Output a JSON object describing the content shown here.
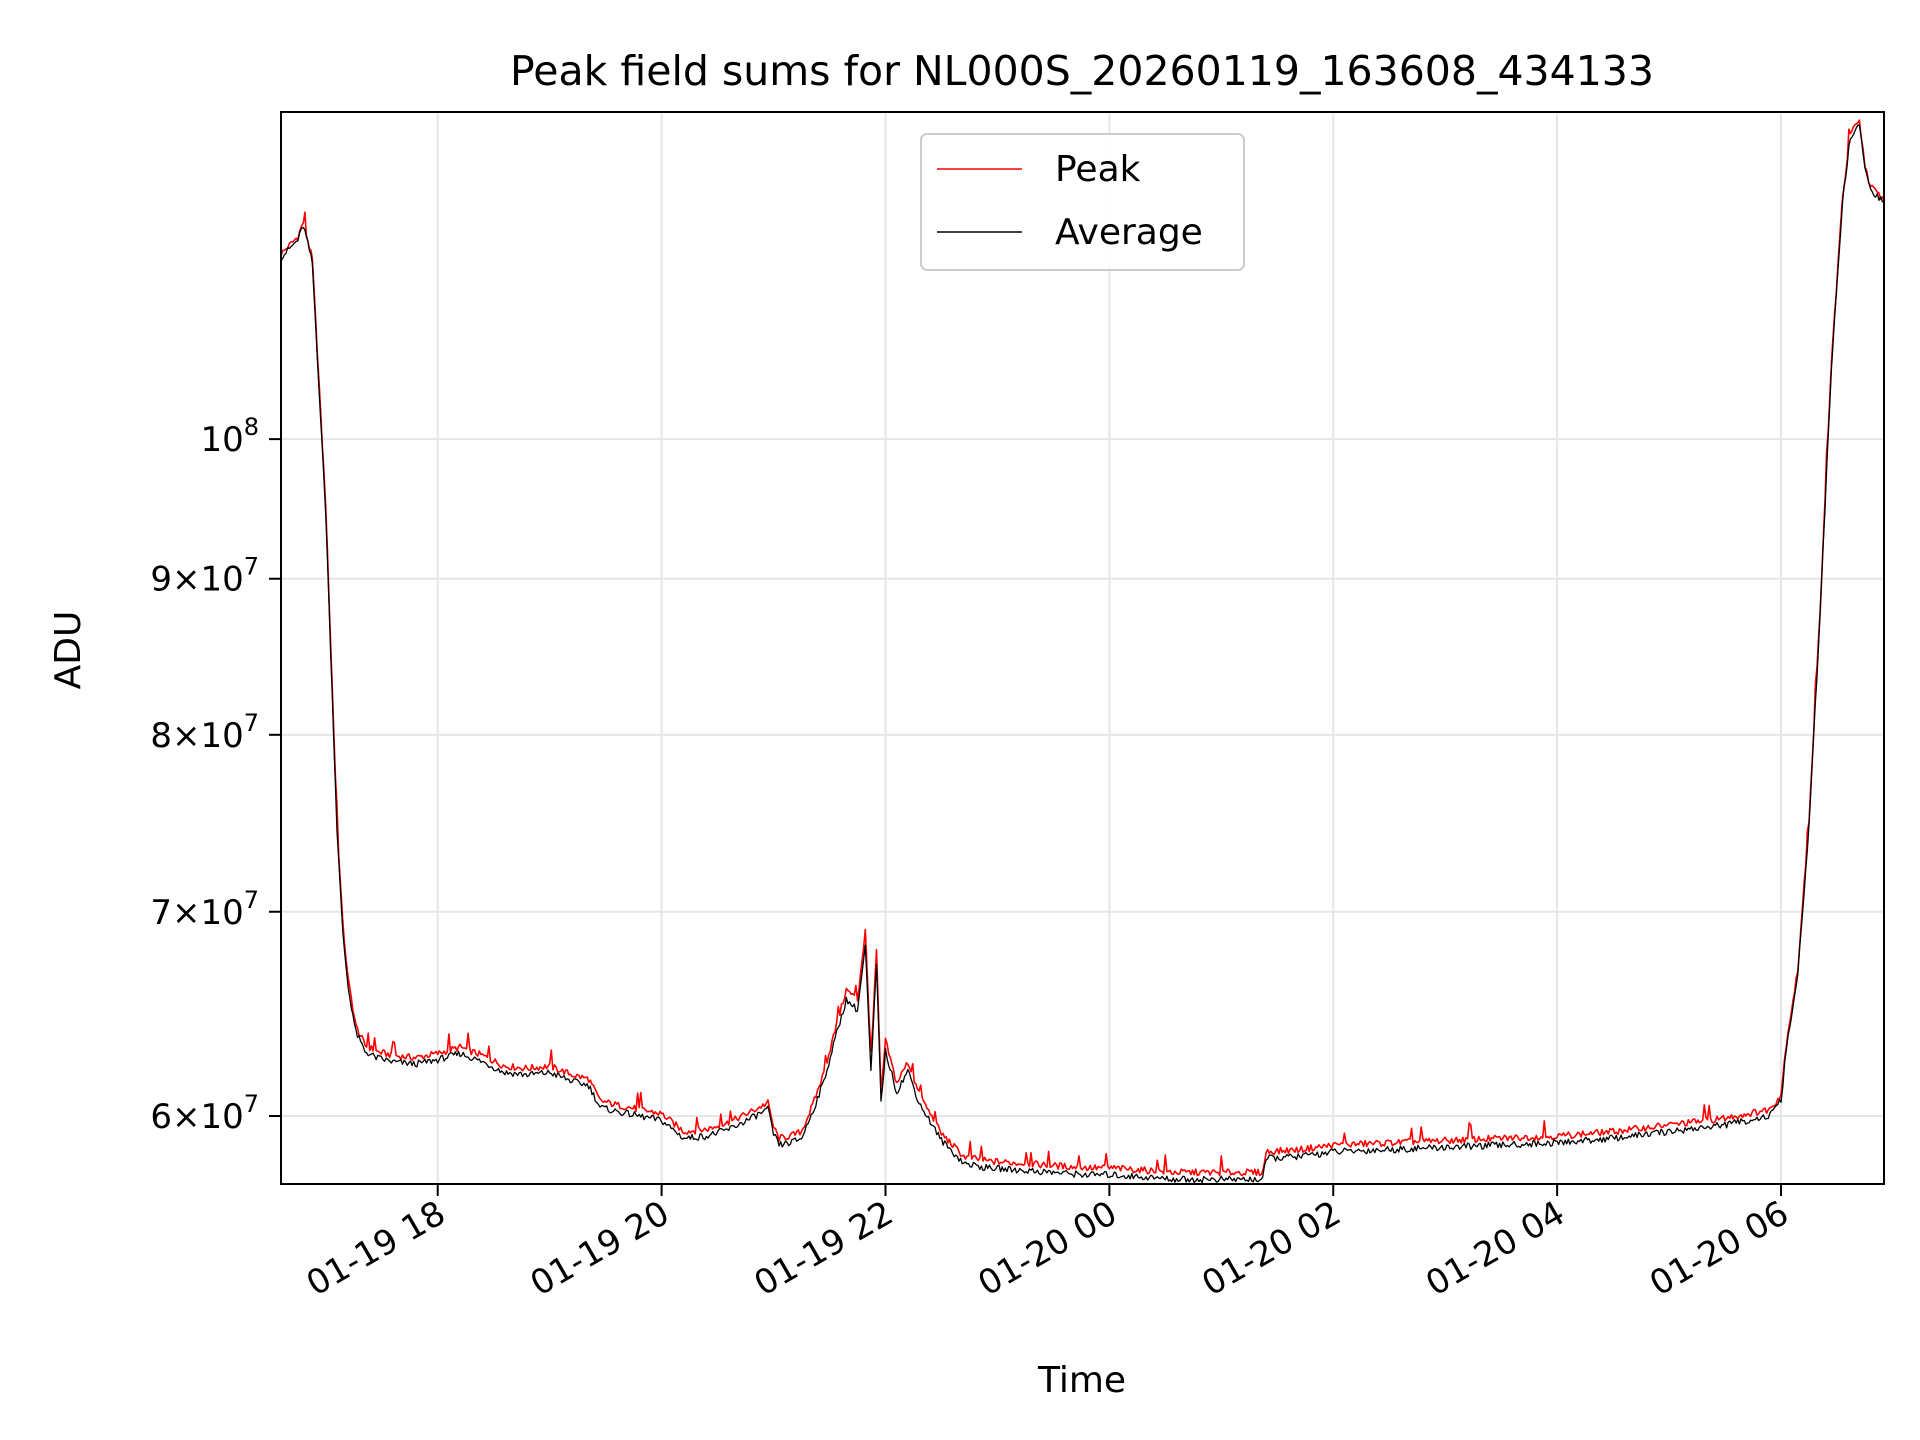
{
  "chart_data": {
    "type": "line",
    "title": "Peak field sums for NL000S_20260119_163608_434133",
    "xlabel": "Time",
    "ylabel": "ADU",
    "yscale": "log",
    "xlim_hours": [
      16.6,
      30.92
    ],
    "ylim": [
      57000000,
      128000000
    ],
    "x_ticks": [
      {
        "hour": 18,
        "label": "01-19 18"
      },
      {
        "hour": 20,
        "label": "01-19 20"
      },
      {
        "hour": 22,
        "label": "01-19 22"
      },
      {
        "hour": 24,
        "label": "01-20 00"
      },
      {
        "hour": 26,
        "label": "01-20 02"
      },
      {
        "hour": 28,
        "label": "01-20 04"
      },
      {
        "hour": 30,
        "label": "01-20 06"
      }
    ],
    "y_ticks": [
      {
        "value": 60000000,
        "mant": "6",
        "exp": "7"
      },
      {
        "value": 70000000,
        "mant": "7",
        "exp": "7"
      },
      {
        "value": 80000000,
        "mant": "8",
        "exp": "7"
      },
      {
        "value": 90000000,
        "mant": "9",
        "exp": "7"
      },
      {
        "value": 100000000,
        "mant": "",
        "exp": "8"
      }
    ],
    "legend": {
      "position": "upper-center"
    },
    "grid": true,
    "series": [
      {
        "name": "Peak",
        "color": "#ff0000",
        "x": [
          16.6,
          16.75,
          16.8,
          16.88,
          17.0,
          17.1,
          17.15,
          17.2,
          17.27,
          17.35,
          17.45,
          17.6,
          17.8,
          18.0,
          18.2,
          18.4,
          18.6,
          18.8,
          19.0,
          19.2,
          19.35,
          19.45,
          19.6,
          19.8,
          20.0,
          20.2,
          20.4,
          20.6,
          20.8,
          20.95,
          21.0,
          21.05,
          21.15,
          21.25,
          21.35,
          21.45,
          21.55,
          21.65,
          21.75,
          21.82,
          21.87,
          21.92,
          21.96,
          22.0,
          22.1,
          22.2,
          22.3,
          22.5,
          22.7,
          22.9,
          23.2,
          23.5,
          23.8,
          24.0,
          24.3,
          24.6,
          24.9,
          25.2,
          25.37,
          25.4,
          25.7,
          26.0,
          26.5,
          27.0,
          27.5,
          28.0,
          28.5,
          29.0,
          29.5,
          29.9,
          30.0,
          30.05,
          30.15,
          30.25,
          30.35,
          30.45,
          30.55,
          30.62,
          30.7,
          30.75,
          30.8,
          30.92
        ],
        "values": [
          115000000,
          116500000,
          117800000,
          114500000,
          95000000,
          75000000,
          69500000,
          66500000,
          64200000,
          63300000,
          63000000,
          62800000,
          62700000,
          62900000,
          63200000,
          62800000,
          62300000,
          62200000,
          62300000,
          61900000,
          61700000,
          60700000,
          60500000,
          60300000,
          60100000,
          59300000,
          59400000,
          59700000,
          60200000,
          60600000,
          59500000,
          59000000,
          59100000,
          59300000,
          60500000,
          62000000,
          64000000,
          66000000,
          65500000,
          69000000,
          62500000,
          68000000,
          61000000,
          63500000,
          61500000,
          62500000,
          61000000,
          59200000,
          58200000,
          58000000,
          57900000,
          57800000,
          57700000,
          57700000,
          57600000,
          57500000,
          57500000,
          57500000,
          57500000,
          58400000,
          58500000,
          58700000,
          58800000,
          58900000,
          59000000,
          59100000,
          59300000,
          59600000,
          59900000,
          60300000,
          61000000,
          63500000,
          67000000,
          75000000,
          88000000,
          106000000,
          120000000,
          126000000,
          127000000,
          123000000,
          121000000,
          119800000
        ]
      },
      {
        "name": "Average",
        "color": "#000000",
        "x": [
          16.6,
          16.75,
          16.8,
          16.88,
          17.0,
          17.1,
          17.15,
          17.2,
          17.27,
          17.35,
          17.45,
          17.6,
          17.8,
          18.0,
          18.2,
          18.4,
          18.6,
          18.8,
          19.0,
          19.2,
          19.35,
          19.45,
          19.6,
          19.8,
          20.0,
          20.2,
          20.4,
          20.6,
          20.8,
          20.95,
          21.0,
          21.05,
          21.15,
          21.25,
          21.35,
          21.45,
          21.55,
          21.65,
          21.75,
          21.82,
          21.87,
          21.92,
          21.96,
          22.0,
          22.1,
          22.2,
          22.3,
          22.5,
          22.7,
          22.9,
          23.2,
          23.5,
          23.8,
          24.0,
          24.3,
          24.6,
          24.9,
          25.2,
          25.37,
          25.4,
          25.7,
          26.0,
          26.5,
          27.0,
          27.5,
          28.0,
          28.5,
          29.0,
          29.5,
          29.9,
          30.0,
          30.05,
          30.15,
          30.25,
          30.35,
          30.45,
          30.55,
          30.62,
          30.7,
          30.75,
          30.8,
          30.92
        ],
        "values": [
          114700000,
          116200000,
          117500000,
          114200000,
          94500000,
          74500000,
          69000000,
          66100000,
          63900000,
          63000000,
          62700000,
          62500000,
          62400000,
          62600000,
          62900000,
          62500000,
          62000000,
          61900000,
          62000000,
          61600000,
          61400000,
          60400000,
          60200000,
          60000000,
          59800000,
          59000000,
          59100000,
          59400000,
          59900000,
          60300000,
          59200000,
          58700000,
          58800000,
          59000000,
          60200000,
          61600000,
          63600000,
          65500000,
          65000000,
          68200000,
          62000000,
          67300000,
          60600000,
          63000000,
          61100000,
          62100000,
          60600000,
          58900000,
          57900000,
          57700000,
          57600000,
          57500000,
          57400000,
          57400000,
          57300000,
          57200000,
          57200000,
          57200000,
          57200000,
          58100000,
          58200000,
          58400000,
          58500000,
          58600000,
          58700000,
          58800000,
          59000000,
          59300000,
          59600000,
          60000000,
          60700000,
          63200000,
          66700000,
          74700000,
          87700000,
          105500000,
          119700000,
          125700000,
          126700000,
          122700000,
          120700000,
          119500000
        ]
      }
    ]
  }
}
